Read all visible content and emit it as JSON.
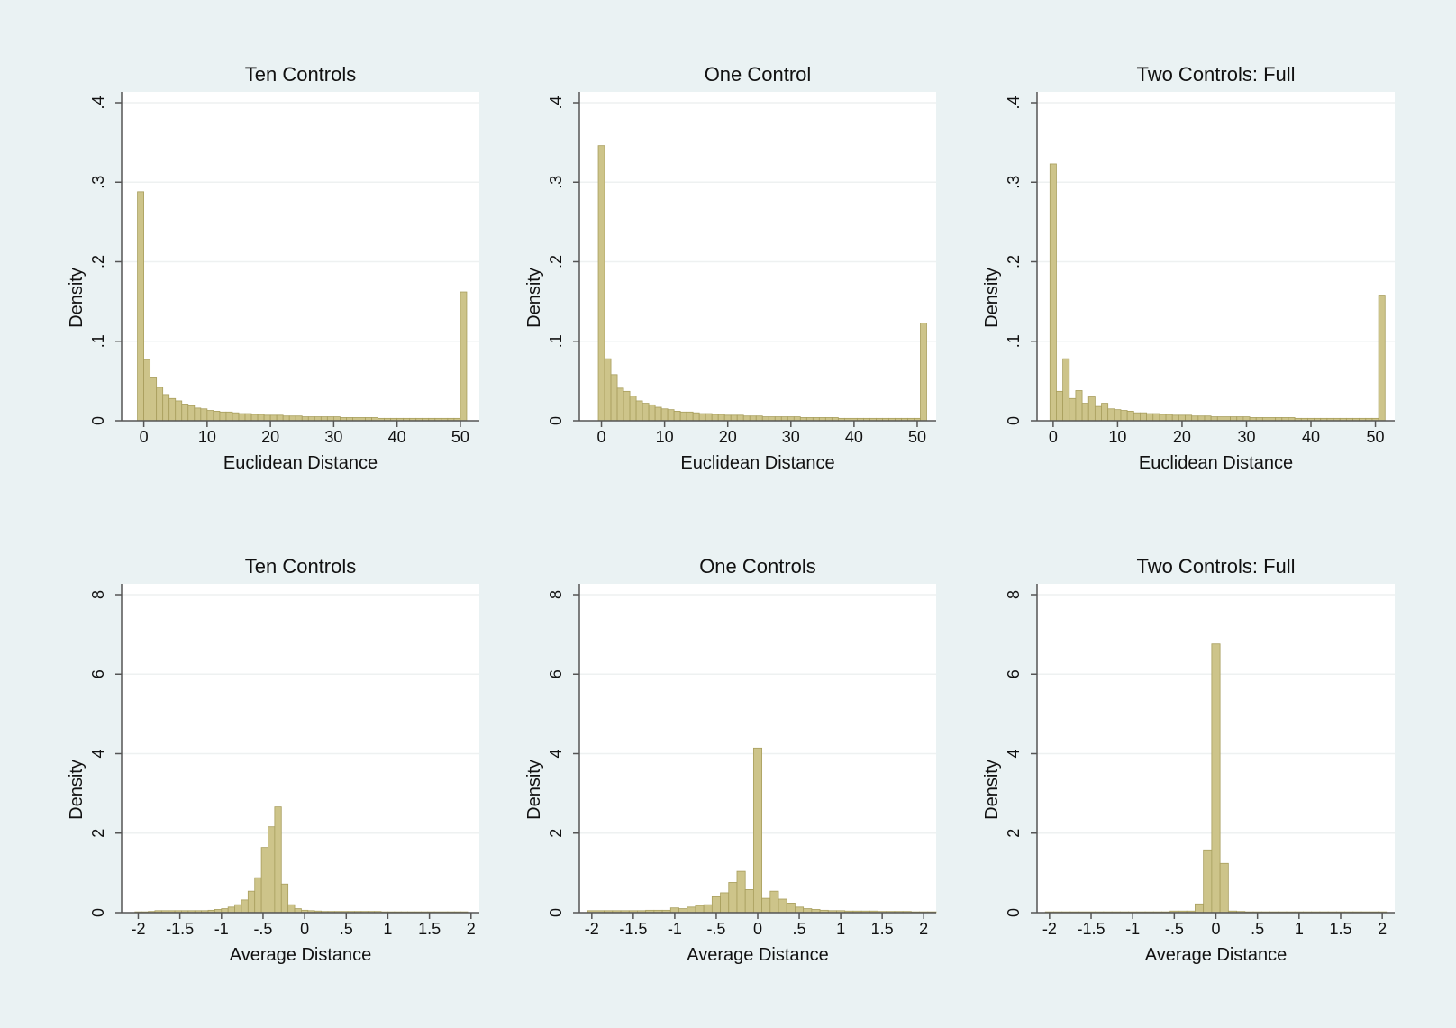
{
  "colors": {
    "page_background": "#eaf2f3",
    "plot_background": "#ffffff",
    "bar_fill": "#cdc48a",
    "bar_stroke": "#a89e5d",
    "gridline": "#eef1f1",
    "axis": "#555555"
  },
  "chart_data": [
    {
      "type": "bar",
      "title": "Ten Controls",
      "xlabel": "Euclidean Distance",
      "ylabel": "Density",
      "xlim": [
        -3.5,
        53
      ],
      "ylim": [
        0,
        0.4
      ],
      "xticks": [
        0,
        10,
        20,
        30,
        40,
        50
      ],
      "xtick_labels": [
        "0",
        "10",
        "20",
        "30",
        "40",
        "50"
      ],
      "yticks": [
        0,
        0.1,
        0.2,
        0.3,
        0.4
      ],
      "ytick_labels": [
        "0",
        ".1",
        ".2",
        ".3",
        ".4"
      ],
      "bin_start": -1,
      "bin_width": 1,
      "values": [
        0.288,
        0.077,
        0.055,
        0.042,
        0.033,
        0.028,
        0.025,
        0.021,
        0.019,
        0.016,
        0.015,
        0.013,
        0.012,
        0.011,
        0.011,
        0.01,
        0.009,
        0.009,
        0.008,
        0.008,
        0.007,
        0.007,
        0.007,
        0.006,
        0.006,
        0.006,
        0.005,
        0.005,
        0.005,
        0.005,
        0.005,
        0.005,
        0.004,
        0.004,
        0.004,
        0.004,
        0.004,
        0.004,
        0.003,
        0.003,
        0.003,
        0.003,
        0.003,
        0.003,
        0.003,
        0.003,
        0.003,
        0.003,
        0.003,
        0.003,
        0.003,
        0.162
      ]
    },
    {
      "type": "bar",
      "title": "One Control",
      "xlabel": "Euclidean Distance",
      "ylabel": "Density",
      "xlim": [
        -3.5,
        53
      ],
      "ylim": [
        0,
        0.4
      ],
      "xticks": [
        0,
        10,
        20,
        30,
        40,
        50
      ],
      "xtick_labels": [
        "0",
        "10",
        "20",
        "30",
        "40",
        "50"
      ],
      "yticks": [
        0,
        0.1,
        0.2,
        0.3,
        0.4
      ],
      "ytick_labels": [
        "0",
        ".1",
        ".2",
        ".3",
        ".4"
      ],
      "bin_start": -0.5,
      "bin_width": 1,
      "values": [
        0.346,
        0.078,
        0.058,
        0.041,
        0.037,
        0.031,
        0.025,
        0.022,
        0.02,
        0.017,
        0.015,
        0.014,
        0.012,
        0.011,
        0.011,
        0.01,
        0.009,
        0.009,
        0.008,
        0.008,
        0.007,
        0.007,
        0.007,
        0.006,
        0.006,
        0.006,
        0.005,
        0.005,
        0.005,
        0.005,
        0.005,
        0.005,
        0.004,
        0.004,
        0.004,
        0.004,
        0.004,
        0.004,
        0.003,
        0.003,
        0.003,
        0.003,
        0.003,
        0.003,
        0.003,
        0.003,
        0.003,
        0.003,
        0.003,
        0.003,
        0.003,
        0.123
      ]
    },
    {
      "type": "bar",
      "title": "Two Controls: Full",
      "xlabel": "Euclidean Distance",
      "ylabel": "Density",
      "xlim": [
        -2.5,
        53
      ],
      "ylim": [
        0,
        0.4
      ],
      "xticks": [
        0,
        10,
        20,
        30,
        40,
        50
      ],
      "xtick_labels": [
        "0",
        "10",
        "20",
        "30",
        "40",
        "50"
      ],
      "yticks": [
        0,
        0.1,
        0.2,
        0.3,
        0.4
      ],
      "ytick_labels": [
        "0",
        ".1",
        ".2",
        ".3",
        ".4"
      ],
      "bin_start": -0.5,
      "bin_width": 1,
      "values": [
        0.323,
        0.037,
        0.078,
        0.028,
        0.038,
        0.022,
        0.03,
        0.018,
        0.022,
        0.015,
        0.014,
        0.013,
        0.012,
        0.01,
        0.01,
        0.009,
        0.009,
        0.008,
        0.008,
        0.007,
        0.007,
        0.007,
        0.006,
        0.006,
        0.006,
        0.005,
        0.005,
        0.005,
        0.005,
        0.005,
        0.005,
        0.004,
        0.004,
        0.004,
        0.004,
        0.004,
        0.004,
        0.004,
        0.003,
        0.003,
        0.003,
        0.003,
        0.003,
        0.003,
        0.003,
        0.003,
        0.003,
        0.003,
        0.003,
        0.003,
        0.003,
        0.158
      ]
    },
    {
      "type": "bar",
      "title": "Ten Controls",
      "xlabel": "Average Distance",
      "ylabel": "Density",
      "xlim": [
        -2.2,
        2.1
      ],
      "ylim": [
        0,
        8
      ],
      "xticks": [
        -2,
        -1.5,
        -1,
        -0.5,
        0,
        0.5,
        1,
        1.5,
        2
      ],
      "xtick_labels": [
        "-2",
        "-1.5",
        "-1",
        "-.5",
        "0",
        ".5",
        "1",
        "1.5",
        "2"
      ],
      "yticks": [
        0,
        2,
        4,
        6,
        8
      ],
      "ytick_labels": [
        "0",
        "2",
        "4",
        "6",
        "8"
      ],
      "bin_start": -2.04,
      "bin_width": 0.08,
      "values": [
        0.02,
        0.02,
        0.03,
        0.05,
        0.05,
        0.05,
        0.05,
        0.05,
        0.05,
        0.05,
        0.05,
        0.06,
        0.08,
        0.1,
        0.14,
        0.2,
        0.32,
        0.54,
        0.88,
        1.64,
        2.16,
        2.66,
        0.72,
        0.2,
        0.1,
        0.06,
        0.05,
        0.04,
        0.03,
        0.03,
        0.03,
        0.03,
        0.03,
        0.03,
        0.03,
        0.03,
        0.03,
        0.02,
        0.02,
        0.02,
        0.02,
        0.02,
        0.02,
        0.02,
        0.02,
        0.02,
        0.02,
        0.02,
        0.02,
        0.02
      ]
    },
    {
      "type": "bar",
      "title": "One Controls",
      "xlabel": "Average Distance",
      "ylabel": "Density",
      "xlim": [
        -2.15,
        2.15
      ],
      "ylim": [
        0,
        8
      ],
      "xticks": [
        -2,
        -1.5,
        -1,
        -0.5,
        0,
        0.5,
        1,
        1.5,
        2
      ],
      "xtick_labels": [
        "-2",
        "-1.5",
        "-1",
        "-.5",
        "0",
        ".5",
        "1",
        "1.5",
        "2"
      ],
      "yticks": [
        0,
        2,
        4,
        6,
        8
      ],
      "ytick_labels": [
        "0",
        "2",
        "4",
        "6",
        "8"
      ],
      "bin_start": -2.05,
      "bin_width": 0.1,
      "values": [
        0.05,
        0.05,
        0.05,
        0.05,
        0.05,
        0.05,
        0.05,
        0.06,
        0.06,
        0.06,
        0.12,
        0.1,
        0.14,
        0.18,
        0.2,
        0.4,
        0.5,
        0.76,
        1.04,
        0.58,
        4.14,
        0.36,
        0.54,
        0.34,
        0.24,
        0.14,
        0.1,
        0.08,
        0.06,
        0.05,
        0.05,
        0.04,
        0.04,
        0.04,
        0.04,
        0.03,
        0.03,
        0.03,
        0.03,
        0.02,
        0.02,
        0.02
      ]
    },
    {
      "type": "bar",
      "title": "Two Controls: Full",
      "xlabel": "Average Distance",
      "ylabel": "Density",
      "xlim": [
        -2.15,
        2.15
      ],
      "ylim": [
        0,
        8
      ],
      "xticks": [
        -2,
        -1.5,
        -1,
        -0.5,
        0,
        0.5,
        1,
        1.5,
        2
      ],
      "xtick_labels": [
        "-2",
        "-1.5",
        "-1",
        "-.5",
        "0",
        ".5",
        "1",
        "1.5",
        "2"
      ],
      "yticks": [
        0,
        2,
        4,
        6,
        8
      ],
      "ytick_labels": [
        "0",
        "2",
        "4",
        "6",
        "8"
      ],
      "bin_start": -2.05,
      "bin_width": 0.1,
      "values": [
        0.02,
        0.02,
        0.02,
        0.02,
        0.02,
        0.02,
        0.02,
        0.02,
        0.02,
        0.02,
        0.02,
        0.02,
        0.02,
        0.02,
        0.02,
        0.04,
        0.04,
        0.04,
        0.22,
        1.58,
        6.76,
        1.24,
        0.04,
        0.03,
        0.02,
        0.02,
        0.02,
        0.02,
        0.02,
        0.02,
        0.02,
        0.02,
        0.02,
        0.02,
        0.02,
        0.02,
        0.02,
        0.02,
        0.02,
        0.02,
        0.02
      ]
    }
  ]
}
